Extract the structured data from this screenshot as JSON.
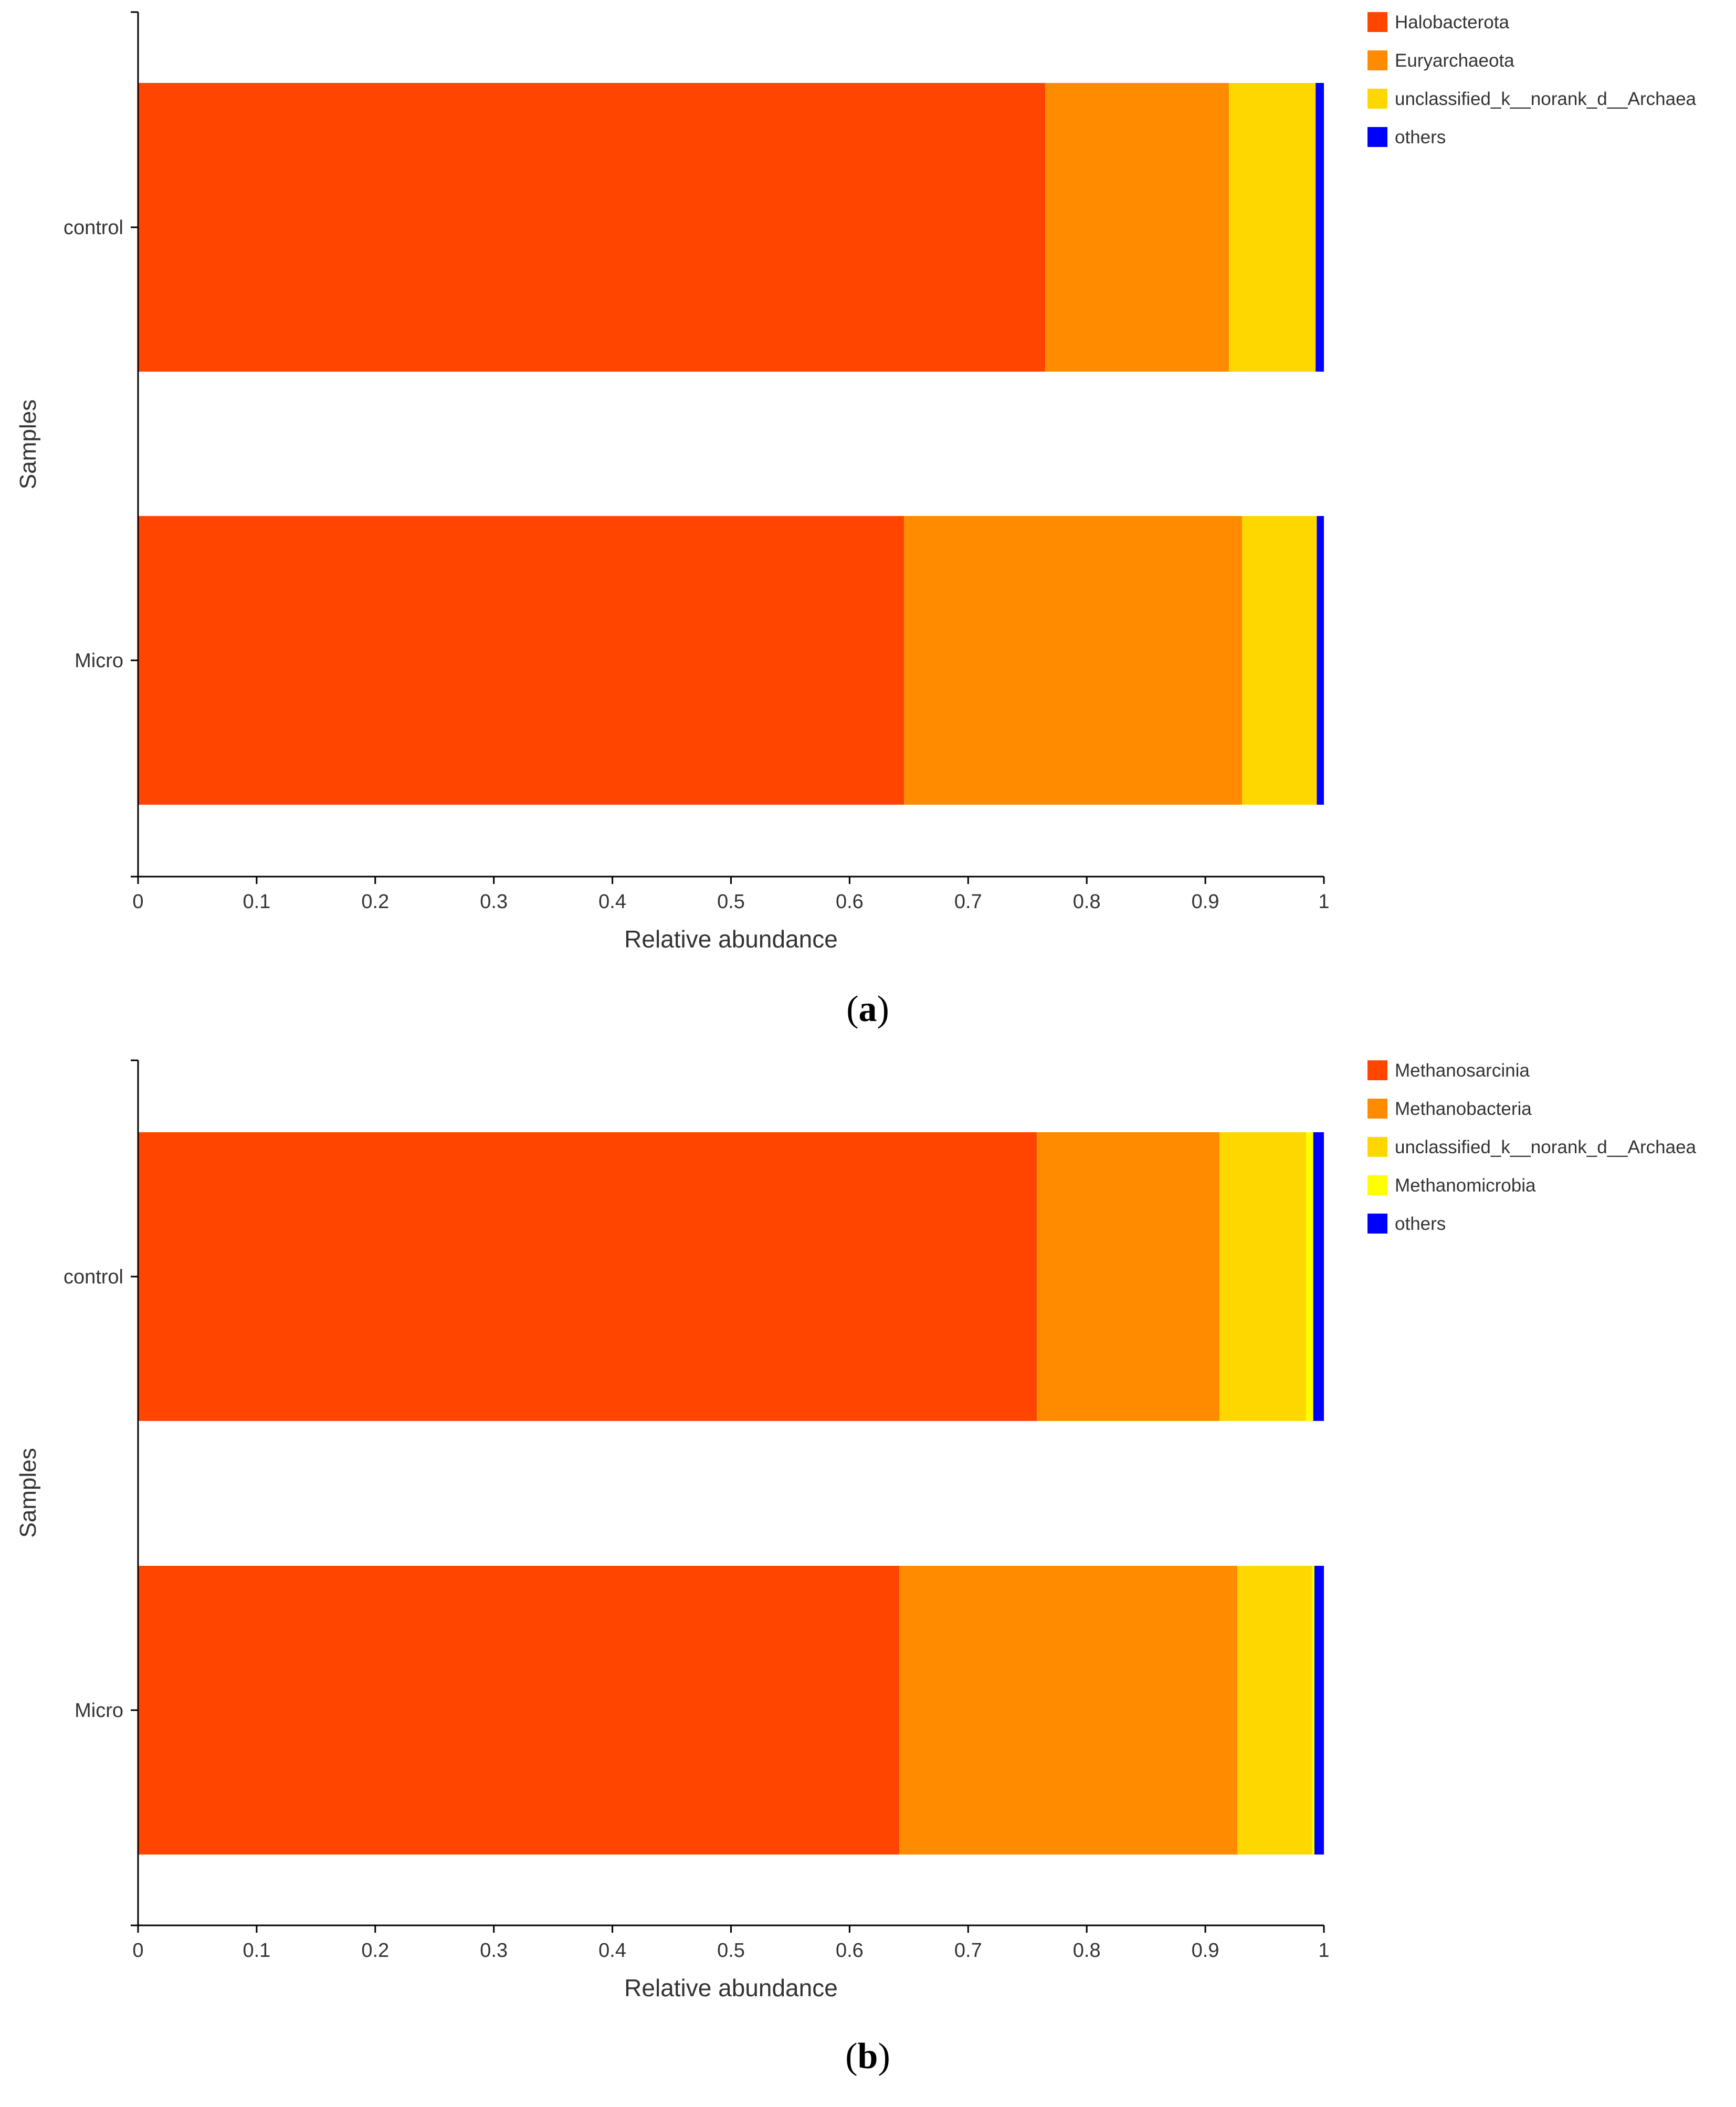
{
  "chart_data": [
    {
      "type": "bar",
      "orientation": "horizontal",
      "stacked": true,
      "panel_label": "a",
      "categories": [
        "control",
        "Micro"
      ],
      "series": [
        {
          "name": "Halobacterota",
          "color": "#FF4500",
          "values": [
            0.765,
            0.646
          ]
        },
        {
          "name": "Euryarchaeota",
          "color": "#FF8C00",
          "values": [
            0.155,
            0.285
          ]
        },
        {
          "name": "unclassified_k__norank_d__Archaea",
          "color": "#FFD700",
          "values": [
            0.073,
            0.063
          ]
        },
        {
          "name": "others",
          "color": "#0000FF",
          "values": [
            0.007,
            0.006
          ]
        }
      ],
      "xlabel": "Relative abundance",
      "ylabel": "Samples",
      "xlim": [
        0,
        1
      ],
      "xticks": [
        "0",
        "0.1",
        "0.2",
        "0.3",
        "0.4",
        "0.5",
        "0.6",
        "0.7",
        "0.8",
        "0.9",
        "1"
      ],
      "legend_position": "top-right",
      "grid": false
    },
    {
      "type": "bar",
      "orientation": "horizontal",
      "stacked": true,
      "panel_label": "b",
      "categories": [
        "control",
        "Micro"
      ],
      "series": [
        {
          "name": "Methanosarcinia",
          "color": "#FF4500",
          "values": [
            0.758,
            0.642
          ]
        },
        {
          "name": "Methanobacteria",
          "color": "#FF8C00",
          "values": [
            0.154,
            0.285
          ]
        },
        {
          "name": "unclassified_k__norank_d__Archaea",
          "color": "#FFD700",
          "values": [
            0.073,
            0.063
          ]
        },
        {
          "name": "Methanomicrobia",
          "color": "#FFFF00",
          "values": [
            0.006,
            0.002
          ]
        },
        {
          "name": "others",
          "color": "#0000FF",
          "values": [
            0.009,
            0.008
          ]
        }
      ],
      "xlabel": "Relative abundance",
      "ylabel": "Samples",
      "xlim": [
        0,
        1
      ],
      "xticks": [
        "0",
        "0.1",
        "0.2",
        "0.3",
        "0.4",
        "0.5",
        "0.6",
        "0.7",
        "0.8",
        "0.9",
        "1"
      ],
      "legend_position": "top-right",
      "grid": false
    }
  ]
}
